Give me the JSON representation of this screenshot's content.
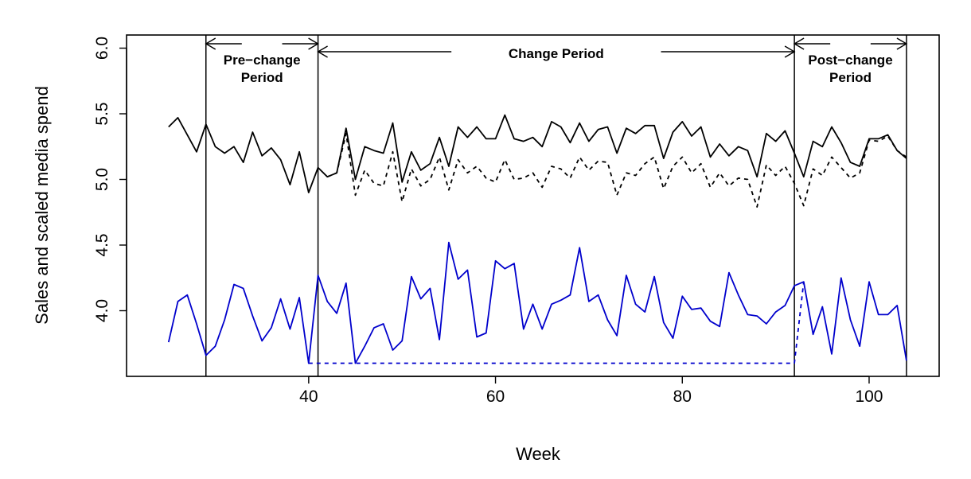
{
  "chart_data": {
    "type": "line",
    "title": "",
    "xlabel": "Week",
    "ylabel": "Sales and scaled media spend",
    "xlim": [
      20.5,
      107.5
    ],
    "ylim": [
      3.5,
      6.1
    ],
    "x_ticks": [
      40,
      60,
      80,
      100
    ],
    "y_ticks": [
      4.0,
      4.5,
      5.0,
      5.5,
      6.0
    ],
    "x_tick_labels": [
      "40",
      "60",
      "80",
      "100"
    ],
    "y_tick_labels": [
      "4.0",
      "4.5",
      "5.0",
      "5.5",
      "6.0"
    ],
    "grid": false,
    "legend": "none",
    "x": [
      25,
      26,
      27,
      28,
      29,
      30,
      31,
      32,
      33,
      34,
      35,
      36,
      37,
      38,
      39,
      40,
      41,
      42,
      43,
      44,
      45,
      46,
      47,
      48,
      49,
      50,
      51,
      52,
      53,
      54,
      55,
      56,
      57,
      58,
      59,
      60,
      61,
      62,
      63,
      64,
      65,
      66,
      67,
      68,
      69,
      70,
      71,
      72,
      73,
      74,
      75,
      76,
      77,
      78,
      79,
      80,
      81,
      82,
      83,
      84,
      85,
      86,
      87,
      88,
      89,
      90,
      91,
      92,
      93,
      94,
      95,
      96,
      97,
      98,
      99,
      100,
      101,
      102,
      103,
      104
    ],
    "series": [
      {
        "color": "#000000",
        "dash": "solid",
        "values": [
          5.4,
          5.47,
          5.34,
          5.21,
          5.42,
          5.25,
          5.2,
          5.25,
          5.13,
          5.36,
          5.18,
          5.24,
          5.15,
          4.96,
          5.21,
          4.9,
          5.09,
          5.02,
          5.05,
          5.39,
          5.0,
          5.25,
          5.22,
          5.2,
          5.43,
          4.98,
          5.21,
          5.07,
          5.12,
          5.32,
          5.1,
          5.4,
          5.32,
          5.4,
          5.31,
          5.31,
          5.49,
          5.31,
          5.29,
          5.32,
          5.25,
          5.44,
          5.4,
          5.28,
          5.43,
          5.29,
          5.38,
          5.4,
          5.2,
          5.39,
          5.35,
          5.41,
          5.41,
          5.16,
          5.36,
          5.44,
          5.33,
          5.4,
          5.17,
          5.27,
          5.18,
          5.25,
          5.22,
          5.02,
          5.35,
          5.29,
          5.37,
          5.2,
          5.02,
          5.29,
          5.25,
          5.4,
          5.28,
          5.13,
          5.1,
          5.31,
          5.31,
          5.34,
          5.22,
          5.16
        ]
      },
      {
        "color": "#000000",
        "dash": "dashed",
        "values": [
          null,
          null,
          null,
          null,
          null,
          null,
          null,
          null,
          null,
          null,
          null,
          null,
          null,
          null,
          null,
          null,
          null,
          5.02,
          5.05,
          5.35,
          4.88,
          5.07,
          4.97,
          4.95,
          5.21,
          4.83,
          5.08,
          4.95,
          5.0,
          5.17,
          4.92,
          5.15,
          5.05,
          5.1,
          5.01,
          4.98,
          5.15,
          5.0,
          5.01,
          5.05,
          4.94,
          5.1,
          5.08,
          5.01,
          5.17,
          5.07,
          5.14,
          5.13,
          4.88,
          5.05,
          5.03,
          5.12,
          5.17,
          4.93,
          5.1,
          5.17,
          5.05,
          5.12,
          4.94,
          5.05,
          4.95,
          5.01,
          5.0,
          4.79,
          5.11,
          5.03,
          5.1,
          4.97,
          4.8,
          5.08,
          5.03,
          5.17,
          5.09,
          5.01,
          5.05,
          5.3,
          5.29,
          5.33,
          5.22,
          5.17
        ]
      },
      {
        "color": "#0000cc",
        "dash": "solid",
        "values": [
          3.76,
          4.07,
          4.12,
          3.9,
          3.66,
          3.73,
          3.93,
          4.2,
          4.17,
          3.96,
          3.77,
          3.87,
          4.09,
          3.86,
          4.1,
          3.6,
          4.27,
          4.07,
          3.98,
          4.21,
          3.6,
          3.73,
          3.87,
          3.9,
          3.7,
          3.77,
          4.26,
          4.09,
          4.17,
          3.78,
          4.52,
          4.24,
          4.31,
          3.8,
          3.83,
          4.38,
          4.32,
          4.36,
          3.86,
          4.05,
          3.86,
          4.05,
          4.08,
          4.12,
          4.48,
          4.07,
          4.12,
          3.93,
          3.81,
          4.27,
          4.05,
          3.99,
          4.26,
          3.91,
          3.79,
          4.11,
          4.01,
          4.02,
          3.92,
          3.88,
          4.29,
          4.12,
          3.97,
          3.96,
          3.9,
          3.99,
          4.04,
          4.19,
          4.22,
          3.82,
          4.03,
          3.67,
          4.25,
          3.93,
          3.73,
          4.22,
          3.97,
          3.97,
          4.04,
          3.62
        ]
      },
      {
        "color": "#0000cc",
        "dash": "dashed",
        "values": [
          null,
          null,
          null,
          null,
          null,
          null,
          null,
          null,
          null,
          null,
          null,
          null,
          null,
          null,
          null,
          3.6,
          3.6,
          3.6,
          3.6,
          3.6,
          3.6,
          3.6,
          3.6,
          3.6,
          3.6,
          3.6,
          3.6,
          3.6,
          3.6,
          3.6,
          3.6,
          3.6,
          3.6,
          3.6,
          3.6,
          3.6,
          3.6,
          3.6,
          3.6,
          3.6,
          3.6,
          3.6,
          3.6,
          3.6,
          3.6,
          3.6,
          3.6,
          3.6,
          3.6,
          3.6,
          3.6,
          3.6,
          3.6,
          3.6,
          3.6,
          3.6,
          3.6,
          3.6,
          3.6,
          3.6,
          3.6,
          3.6,
          3.6,
          3.6,
          3.6,
          3.6,
          3.6,
          3.6,
          4.22,
          null,
          null,
          null,
          null,
          null,
          null,
          null,
          null,
          null,
          null,
          null
        ]
      }
    ],
    "period_boundaries": [
      29,
      41,
      92,
      104
    ],
    "annotations": [
      {
        "id": "pre",
        "lines": [
          "Pre−change",
          "Period"
        ],
        "x_from": 29,
        "x_to": 41
      },
      {
        "id": "change",
        "lines": [
          "Change Period"
        ],
        "x_from": 41,
        "x_to": 92
      },
      {
        "id": "post",
        "lines": [
          "Post−change",
          "Period"
        ],
        "x_from": 92,
        "x_to": 104
      }
    ]
  }
}
